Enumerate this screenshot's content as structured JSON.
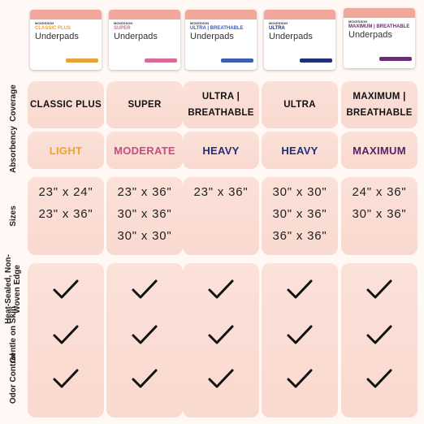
{
  "brand": "MCKESSON",
  "row_labels": [
    "Coverage",
    "Absorbency",
    "Sizes",
    "Heat-Sealed, Non-Woven Edge",
    "Gentle on Skin",
    "Odor Control"
  ],
  "products": [
    {
      "package_title": "CLASSIC PLUS",
      "package_name": "Underpads",
      "package_color": "#e8a23a",
      "coverage": [
        "CLASSIC PLUS"
      ],
      "absorbency": "LIGHT",
      "absorbency_color": "#f2a12c",
      "sizes": [
        "23\" x 24\"",
        "23\" x 36\""
      ]
    },
    {
      "package_title": "SUPER",
      "package_name": "Underpads",
      "package_color": "#d96a9a",
      "coverage": [
        "SUPER"
      ],
      "absorbency": "MODERATE",
      "absorbency_color": "#c94b82",
      "sizes": [
        "23\" x 36\"",
        "30\" x 36\"",
        "30\" x 30\""
      ]
    },
    {
      "package_title": "ULTRA | BREATHABLE",
      "package_name": "Underpads",
      "package_color": "#3b5fb5",
      "coverage": [
        "ULTRA |",
        "BREATHABLE"
      ],
      "absorbency": "HEAVY",
      "absorbency_color": "#1f2f7c",
      "sizes": [
        "23\" x 36\""
      ]
    },
    {
      "package_title": "ULTRA",
      "package_name": "Underpads",
      "package_color": "#1f2f7c",
      "coverage": [
        "ULTRA"
      ],
      "absorbency": "HEAVY",
      "absorbency_color": "#1f2f7c",
      "sizes": [
        "30\" x 30\"",
        "30\" x 36\"",
        "36\" x 36\""
      ]
    },
    {
      "package_title": "MAXIMUM | BREATHABLE",
      "package_name": "Underpads",
      "package_color": "#6a2f75",
      "coverage": [
        "MAXIMUM |",
        "BREATHABLE"
      ],
      "absorbency": "MAXIMUM",
      "absorbency_color": "#5a2067",
      "sizes": [
        "24\" x 36\"",
        "30\" x 36\""
      ]
    }
  ]
}
